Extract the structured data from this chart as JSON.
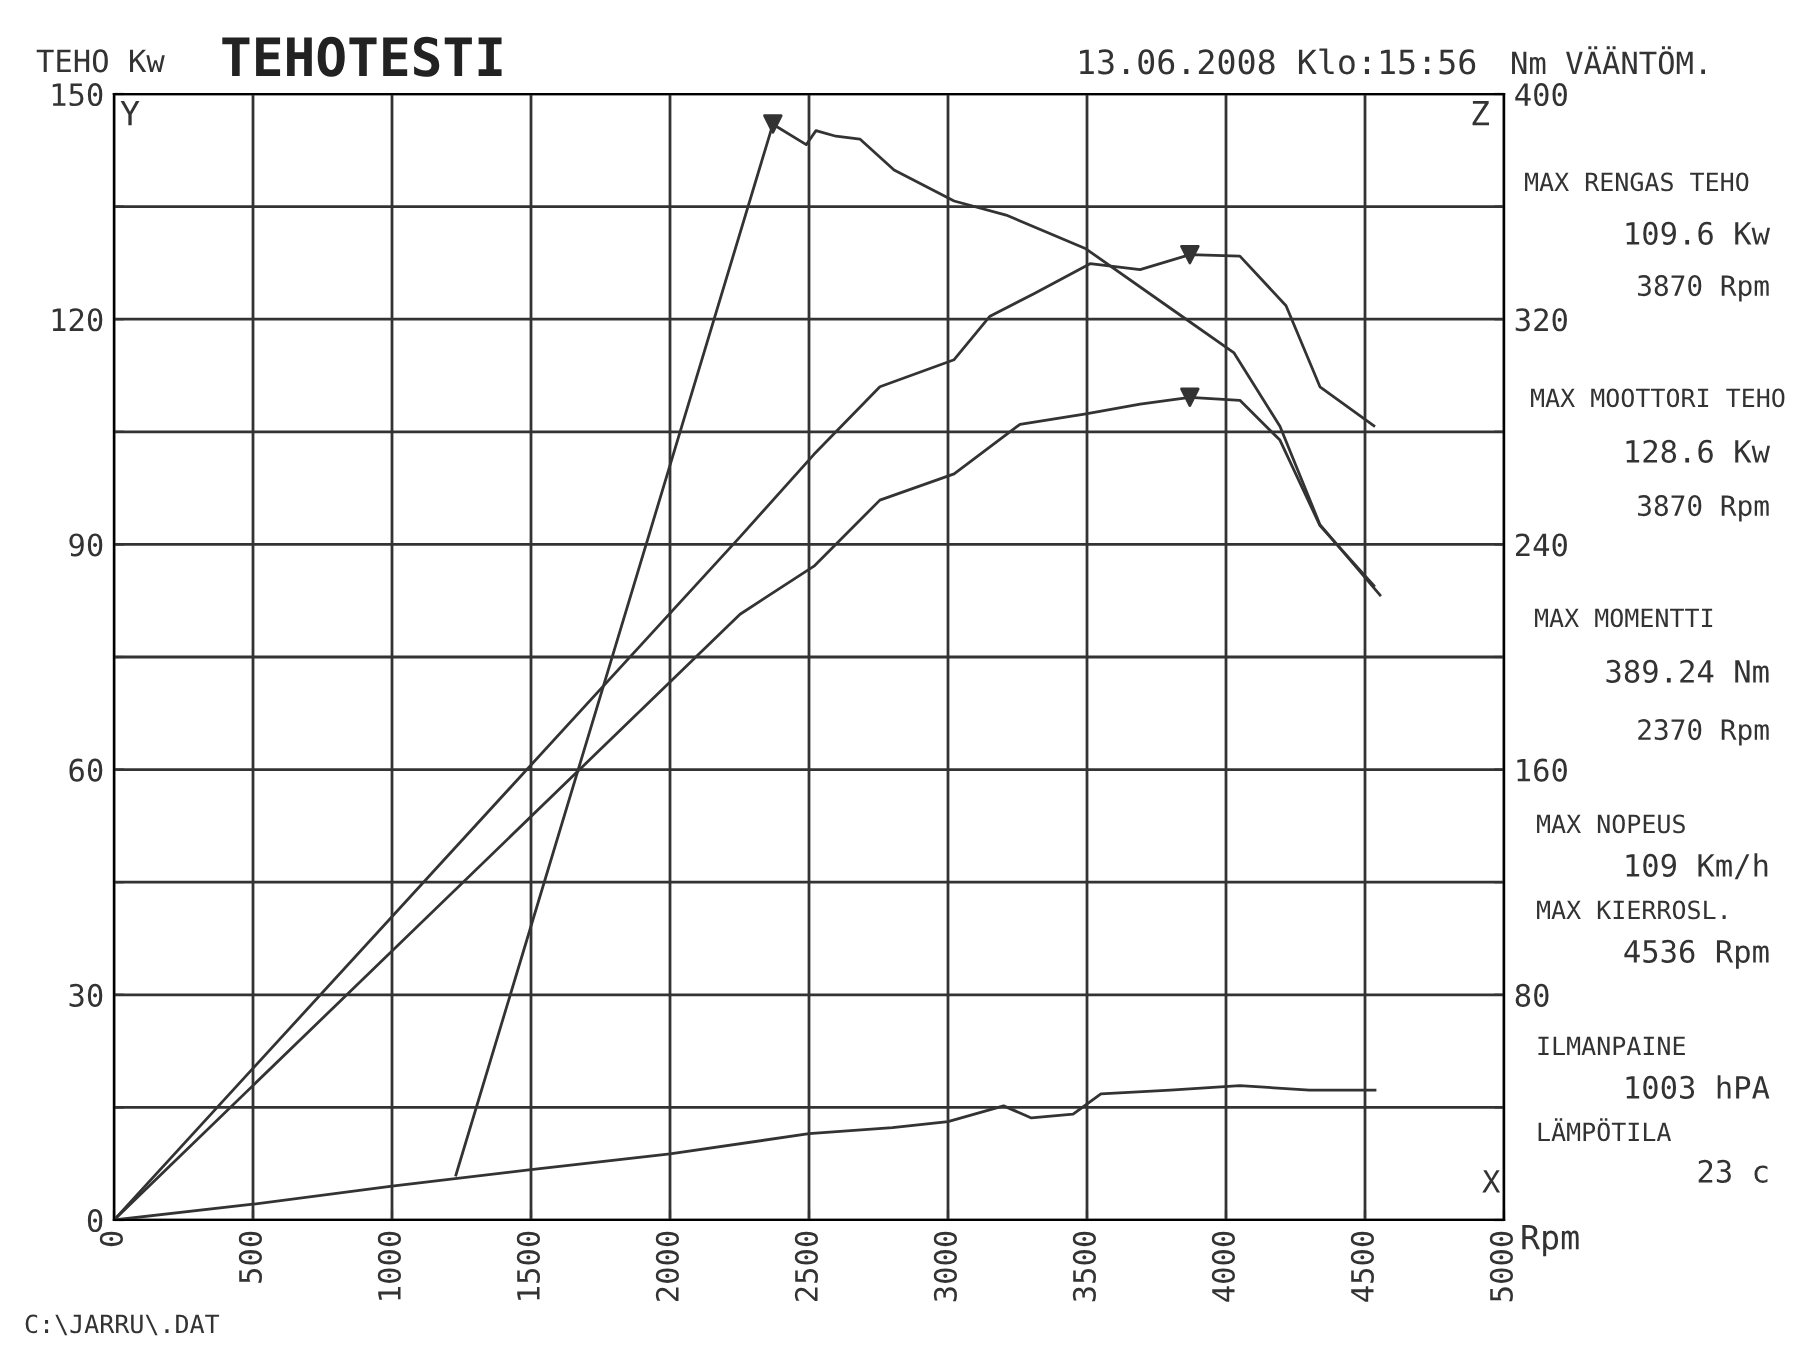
{
  "chart_data": {
    "type": "line",
    "title": "TEHOTESTI",
    "subtitle": "13.06.2008 Klo:15:56",
    "ylabel": "TEHO Kw",
    "y2label": "Nm VÄÄNTÖM.",
    "series": [
      {
        "color": "#333333",
        "x": [
          0,
          2252,
          2518,
          2755,
          3022,
          3151,
          3309,
          3511,
          3691,
          3870,
          4050,
          4216,
          4338,
          4532
        ],
        "values": [
          0,
          91,
          102,
          111,
          114.6,
          120.4,
          123.4,
          127.4,
          126.6,
          128.6,
          128.4,
          121.8,
          111,
          105.8
        ]
      },
      {
        "color": "#333333",
        "x": [
          0,
          2252,
          2518,
          2755,
          3022,
          3259,
          3496,
          3691,
          3870,
          4050,
          4194,
          4338,
          4532
        ],
        "values": [
          0,
          80.7,
          87.1,
          95.9,
          99.4,
          106,
          107.4,
          108.7,
          109.6,
          109.2,
          103.9,
          92.5,
          84.5
        ]
      },
      {
        "color": "#333333",
        "x": [
          0,
          500,
          1000,
          1500,
          2000,
          2500,
          2800,
          3000,
          3200,
          3300,
          3450,
          3550,
          3800,
          4050,
          4300,
          4536
        ],
        "values": [
          0,
          2.1,
          4.5,
          6.7,
          8.8,
          11.5,
          12.3,
          13.1,
          15.2,
          13.6,
          14.1,
          16.8,
          17.3,
          17.9,
          17.3,
          17.3
        ]
      },
      {
        "type": "scatter",
        "marker": "triangle",
        "color": "#333333",
        "x": [
          2370,
          3870,
          3870
        ],
        "values": [
          146,
          128.6,
          109.6
        ]
      },
      {
        "color": "#333333",
        "axis": "y2",
        "x": [
          1230,
          2370,
          2490,
          2525,
          2597,
          2683,
          2806,
          3022,
          3209,
          3496,
          3813,
          4029,
          4194,
          4338,
          4554
        ],
        "values": [
          16,
          389.24,
          382,
          387,
          385,
          384,
          373,
          362,
          357,
          345,
          323,
          308,
          282,
          247,
          222
        ]
      }
    ],
    "xlim": [
      0,
      5000
    ],
    "xticks": [
      0,
      500,
      1000,
      1500,
      2000,
      2500,
      3000,
      3500,
      4000,
      4500,
      5000
    ],
    "ylim": [
      0,
      150
    ],
    "yticks": [
      0,
      {
        "value": 15,
        "label": null
      },
      30,
      {
        "value": 45,
        "label": null
      },
      60,
      {
        "value": 75,
        "label": null
      },
      90,
      {
        "value": 105,
        "label": null
      },
      120,
      {
        "value": 135,
        "label": null
      },
      150
    ],
    "y2lim": [
      0,
      400
    ],
    "y2ticks": [
      {
        "value": 0,
        "label": null
      },
      {
        "value": 40,
        "label": null
      },
      80,
      {
        "value": 120,
        "label": null
      },
      160,
      {
        "value": 200,
        "label": null
      },
      240,
      {
        "value": 280,
        "label": null
      },
      320,
      {
        "value": 360,
        "label": null
      },
      400
    ],
    "grid": true,
    "line_style": "solid",
    "annotations": [
      "MAX RENGAS TEHO",
      "109.6 Kw",
      "3870 Rpm",
      "MAX MOOTTORI TEHO",
      "128.6 Kw",
      "3870 Rpm",
      "MAX MOMENTTI",
      "389.24 Nm",
      "2370 Rpm",
      "MAX NOPEUS",
      "109 Km/h",
      "MAX KIERROSL.",
      "4536 Rpm",
      "ILMANPAINE",
      "1003 hPA",
      "LÄMPÖTILA",
      "23 c",
      "Y",
      "Z",
      "X",
      "Rpm",
      "C:\\JARRU\\.DAT"
    ]
  }
}
